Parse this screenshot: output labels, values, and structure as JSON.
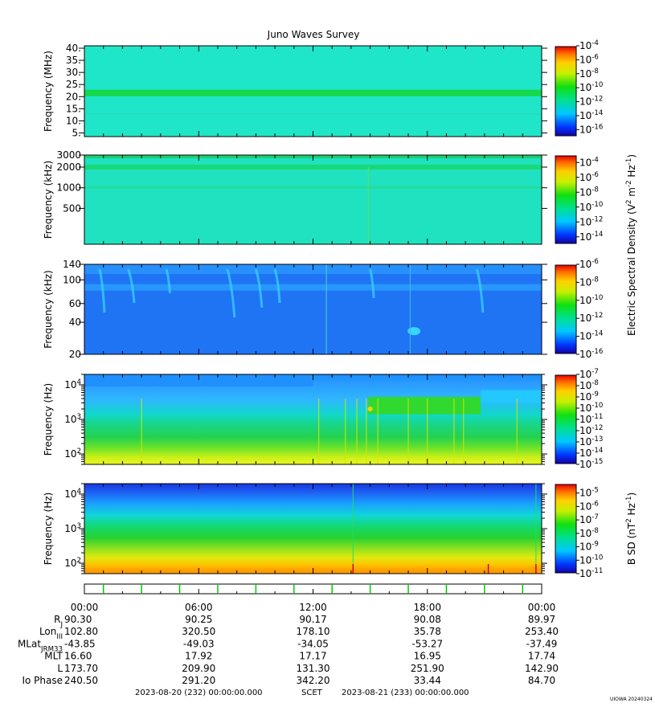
{
  "title": "Juno Waves Survey",
  "credit": "UIOWA 20240324",
  "colors": {
    "background": "#ffffff",
    "axis": "#000000",
    "green_tick": "#00cc00"
  },
  "chart_data": [
    {
      "type": "heatmap",
      "ylabel": "Frequency (MHz)",
      "yscale": "linear",
      "ylim": [
        3.5,
        41
      ],
      "yticks": [
        "5.",
        "10.",
        "15.",
        "20.",
        "25.",
        "30.",
        "35.",
        "40."
      ],
      "ytick_values": [
        5,
        10,
        15,
        20,
        25,
        30,
        35,
        40
      ],
      "colorbar": {
        "scale": "log",
        "range_exp": [
          -17,
          -4
        ],
        "labels": [
          {
            "exp": "-4",
            "v": -4
          },
          {
            "exp": "-6",
            "v": -6
          },
          {
            "exp": "-8",
            "v": -8
          },
          {
            "exp": "-10",
            "v": -10
          },
          {
            "exp": "-12",
            "v": -12
          },
          {
            "exp": "-14",
            "v": -14
          },
          {
            "exp": "-16",
            "v": -16
          }
        ]
      }
    },
    {
      "type": "heatmap",
      "ylabel": "Frequency (kHz)",
      "yscale": "log",
      "ylim": [
        150,
        3000
      ],
      "yticks": [
        "500",
        "1000",
        "2000",
        "3000"
      ],
      "ytick_values": [
        500,
        1000,
        2000,
        3000
      ],
      "colorbar": {
        "scale": "log",
        "range_exp": [
          -15,
          -3
        ],
        "labels": [
          {
            "exp": "-4",
            "v": -4
          },
          {
            "exp": "-6",
            "v": -6
          },
          {
            "exp": "-8",
            "v": -8
          },
          {
            "exp": "-10",
            "v": -10
          },
          {
            "exp": "-12",
            "v": -12
          },
          {
            "exp": "-14",
            "v": -14
          }
        ]
      }
    },
    {
      "type": "heatmap",
      "ylabel": "Frequency (kHz)",
      "yscale": "log",
      "ylim": [
        20,
        140
      ],
      "yticks": [
        "20",
        "40",
        "60",
        "100",
        "140"
      ],
      "ytick_values": [
        20,
        40,
        60,
        100,
        140
      ],
      "colorbar": {
        "scale": "log",
        "range_exp": [
          -16,
          -6
        ],
        "labels": [
          {
            "exp": "-6",
            "v": -6
          },
          {
            "exp": "-8",
            "v": -8
          },
          {
            "exp": "-10",
            "v": -10
          },
          {
            "exp": "-12",
            "v": -12
          },
          {
            "exp": "-14",
            "v": -14
          },
          {
            "exp": "-16",
            "v": -16
          }
        ]
      }
    },
    {
      "type": "heatmap",
      "ylabel": "Frequency (Hz)",
      "yscale": "log",
      "ylim": [
        50,
        20000
      ],
      "yticks": [
        {
          "base": "10",
          "exp": "2",
          "v": 100
        },
        {
          "base": "10",
          "exp": "3",
          "v": 1000
        },
        {
          "base": "10",
          "exp": "4",
          "v": 10000
        }
      ],
      "colorbar": {
        "scale": "log",
        "range_exp": [
          -15,
          -7
        ],
        "labels": [
          {
            "exp": "-7",
            "v": -7
          },
          {
            "exp": "-8",
            "v": -8
          },
          {
            "exp": "-9",
            "v": -9
          },
          {
            "exp": "-10",
            "v": -10
          },
          {
            "exp": "-11",
            "v": -11
          },
          {
            "exp": "-12",
            "v": -12
          },
          {
            "exp": "-13",
            "v": -13
          },
          {
            "exp": "-14",
            "v": -14
          },
          {
            "exp": "-15",
            "v": -15
          }
        ]
      }
    },
    {
      "type": "heatmap",
      "ylabel": "Frequency (Hz)",
      "yscale": "log",
      "ylim": [
        50,
        20000
      ],
      "yticks": [
        {
          "base": "10",
          "exp": "2",
          "v": 100
        },
        {
          "base": "10",
          "exp": "3",
          "v": 1000
        },
        {
          "base": "10",
          "exp": "4",
          "v": 10000
        }
      ],
      "colorbar": {
        "scale": "log",
        "range_exp": [
          -11,
          -4.3
        ],
        "labels": [
          {
            "exp": "-5",
            "v": -5
          },
          {
            "exp": "-6",
            "v": -6
          },
          {
            "exp": "-7",
            "v": -7
          },
          {
            "exp": "-8",
            "v": -8
          },
          {
            "exp": "-9",
            "v": -9
          },
          {
            "exp": "-10",
            "v": -10
          },
          {
            "exp": "-11",
            "v": -11
          }
        ]
      }
    }
  ],
  "colorbar_labels": {
    "electric": {
      "a": "Electric Spectral Density (V",
      "b": "2",
      "c": " m",
      "d": "-2",
      "e": " Hz",
      "f": "-1",
      "g": ")"
    },
    "magnetic": {
      "a": "B SD (nT",
      "b": "2",
      "c": " Hz",
      "d": "-1",
      "e": ")"
    }
  },
  "time_axis": {
    "labels": [
      "00:00",
      "06:00",
      "12:00",
      "18:00",
      "00:00"
    ],
    "hours": [
      0,
      6,
      12,
      18,
      24
    ],
    "green_ticks_hours": [
      1,
      3,
      5,
      7,
      9,
      11,
      13,
      15,
      17,
      19,
      21,
      23
    ]
  },
  "ephemeris": [
    {
      "label": "R",
      "sub": "J",
      "values": [
        "90.30",
        "90.25",
        "90.17",
        "90.08",
        "89.97"
      ]
    },
    {
      "label": "Lon",
      "sub": "III",
      "values": [
        "102.80",
        "320.50",
        "178.10",
        "35.78",
        "253.40"
      ]
    },
    {
      "label": "MLat",
      "sub": "JRM33",
      "values": [
        "-43.85",
        "-49.03",
        "-34.05",
        "-53.27",
        "-37.49"
      ]
    },
    {
      "label": "MLT",
      "sub": "",
      "values": [
        "16.60",
        "17.92",
        "17.17",
        "16.95",
        "17.74"
      ]
    },
    {
      "label": "L",
      "sub": "",
      "values": [
        "173.70",
        "209.90",
        "131.30",
        "251.90",
        "142.90"
      ]
    },
    {
      "label": "Io Phase",
      "sub": "",
      "values": [
        "240.50",
        "291.20",
        "342.20",
        "33.44",
        "84.70"
      ]
    }
  ],
  "footer": {
    "start": "2023-08-20 (232) 00:00:00.000",
    "scet": "SCET",
    "end": "2023-08-21 (233) 00:00:00.000"
  }
}
